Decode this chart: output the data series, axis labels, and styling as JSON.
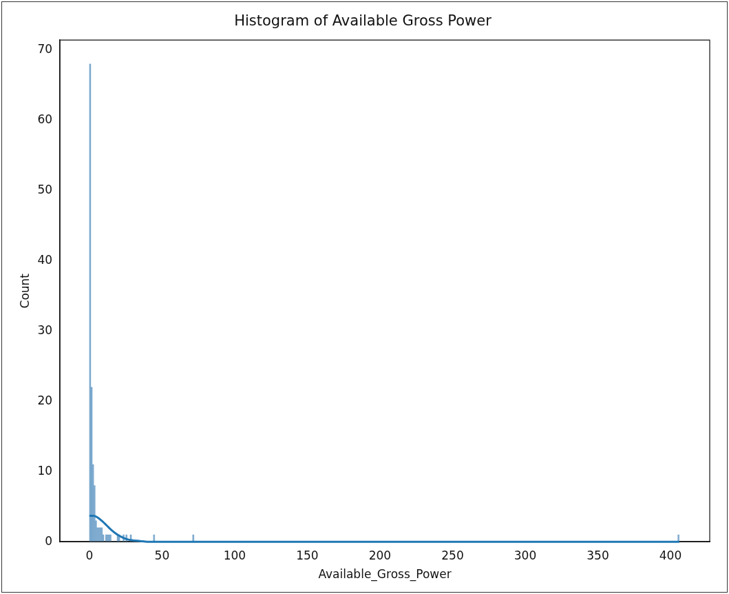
{
  "chart_data": {
    "type": "histogram",
    "title": "Histogram of Available Gross Power",
    "xlabel": "Available_Gross_Power",
    "ylabel": "Count",
    "bins": [
      0,
      1,
      2,
      3,
      4,
      5,
      6,
      7,
      8,
      9,
      10,
      11,
      12,
      13,
      14,
      15,
      16,
      17,
      18,
      19,
      20,
      21,
      22,
      23,
      24,
      25,
      26,
      27,
      28,
      29,
      30,
      31,
      32,
      33,
      34,
      35,
      36,
      37,
      38,
      39,
      40,
      41,
      42,
      43,
      44,
      45,
      46,
      47,
      48,
      49,
      50,
      51,
      52,
      53,
      54,
      55,
      56,
      57,
      58,
      59,
      60,
      61,
      62,
      63,
      64,
      65,
      66,
      67,
      68,
      69,
      70,
      71,
      72,
      73,
      74,
      75,
      76,
      77,
      78,
      79,
      80,
      81,
      82,
      83,
      84,
      85,
      86,
      87,
      88,
      89,
      90,
      91,
      92,
      93,
      94,
      95,
      96,
      97,
      98,
      99,
      100,
      101,
      102,
      103,
      104,
      105,
      106,
      107,
      108,
      109,
      110,
      111,
      112,
      113,
      114,
      115,
      116,
      117,
      118,
      119,
      120,
      121,
      122,
      123,
      124,
      125,
      126,
      127,
      128,
      129,
      130,
      131,
      132,
      133,
      134,
      135,
      136,
      137,
      138,
      139,
      140,
      141,
      142,
      143,
      144,
      145,
      146,
      147,
      148,
      149,
      150,
      151,
      152,
      153,
      154,
      155,
      156,
      157,
      158,
      159,
      160,
      161,
      162,
      163,
      164,
      165,
      166,
      167,
      168,
      169,
      170,
      171,
      172,
      173,
      174,
      175,
      176,
      177,
      178,
      179,
      180,
      181,
      182,
      183,
      184,
      185,
      186,
      187,
      188,
      189,
      190,
      191,
      192,
      193,
      194,
      195,
      196,
      197,
      198,
      199,
      200,
      201,
      202,
      203,
      204,
      205,
      206,
      207,
      208,
      209,
      210,
      211,
      212,
      213,
      214,
      215,
      216,
      217,
      218,
      219,
      220,
      221,
      222,
      223,
      224,
      225,
      226,
      227,
      228,
      229,
      230,
      231,
      232,
      233,
      234,
      235,
      236,
      237,
      238,
      239,
      240,
      241,
      242,
      243,
      244,
      245,
      246,
      247,
      248,
      249,
      250,
      251,
      252,
      253,
      254,
      255,
      256,
      257,
      258,
      259,
      260,
      261,
      262,
      263,
      264,
      265,
      266,
      267,
      268,
      269,
      270,
      271,
      272,
      273,
      274,
      275,
      276,
      277,
      278,
      279,
      280,
      281,
      282,
      283,
      284,
      285,
      286,
      287,
      288,
      289,
      290,
      291,
      292,
      293,
      294,
      295,
      296,
      297,
      298,
      299,
      300,
      301,
      302,
      303,
      304,
      305,
      306,
      307,
      308,
      309,
      310,
      311,
      312,
      313,
      314,
      315,
      316,
      317,
      318,
      319,
      320,
      321,
      322,
      323,
      324,
      325,
      326,
      327,
      328,
      329,
      330,
      331,
      332,
      333,
      334,
      335,
      336,
      337,
      338,
      339,
      340,
      341,
      342,
      343,
      344,
      345,
      346,
      347,
      348,
      349,
      350,
      351,
      352,
      353,
      354,
      355,
      356,
      357,
      358,
      359,
      360,
      361,
      362,
      363,
      364,
      365,
      366,
      367,
      368,
      369,
      370,
      371,
      372,
      373,
      374,
      375,
      376,
      377,
      378,
      379,
      380,
      381,
      382,
      383,
      384,
      385,
      386,
      387,
      388,
      389,
      390,
      391,
      392,
      393,
      394,
      395,
      396,
      397,
      398,
      399,
      400,
      401,
      402,
      403,
      404,
      405,
      406
    ],
    "values": [
      68,
      22,
      11,
      8,
      3,
      2,
      2,
      2,
      2,
      1,
      0,
      1,
      1,
      1,
      1,
      0,
      0,
      0,
      0,
      1,
      1,
      0,
      0,
      1,
      0,
      1,
      0,
      0,
      1,
      0,
      0,
      0,
      0,
      0,
      0,
      0,
      0,
      0,
      0,
      0,
      0,
      0,
      0,
      0,
      1,
      0,
      0,
      0,
      0,
      0,
      0,
      0,
      0,
      0,
      0,
      0,
      0,
      0,
      0,
      0,
      0,
      0,
      0,
      0,
      0,
      0,
      0,
      0,
      0,
      0,
      0,
      1,
      0,
      0,
      0,
      0,
      0,
      0,
      0,
      0,
      0,
      0,
      0,
      0,
      0,
      0,
      0,
      0,
      0,
      0,
      0,
      0,
      0,
      0,
      0,
      0,
      0,
      0,
      0,
      0,
      0,
      0,
      0,
      0,
      0,
      0,
      0,
      0,
      0,
      0,
      0,
      0,
      0,
      0,
      0,
      0,
      0,
      0,
      0,
      0,
      0,
      0,
      0,
      0,
      0,
      0,
      0,
      0,
      0,
      0,
      0,
      0,
      0,
      0,
      0,
      0,
      0,
      0,
      0,
      0,
      0,
      0,
      0,
      0,
      0,
      0,
      0,
      0,
      0,
      0,
      0,
      0,
      0,
      0,
      0,
      0,
      0,
      0,
      0,
      0,
      0,
      0,
      0,
      0,
      0,
      0,
      0,
      0,
      0,
      0,
      0,
      0,
      0,
      0,
      0,
      0,
      0,
      0,
      0,
      0,
      0,
      0,
      0,
      0,
      0,
      0,
      0,
      0,
      0,
      0,
      0,
      0,
      0,
      0,
      0,
      0,
      0,
      0,
      0,
      0,
      0,
      0,
      0,
      0,
      0,
      0,
      0,
      0,
      0,
      0,
      0,
      0,
      0,
      0,
      0,
      0,
      0,
      0,
      0,
      0,
      0,
      0,
      0,
      0,
      0,
      0,
      0,
      0,
      0,
      0,
      0,
      0,
      0,
      0,
      0,
      0,
      0,
      0,
      0,
      0,
      0,
      0,
      0,
      0,
      0,
      0,
      0,
      0,
      0,
      0,
      0,
      0,
      0,
      0,
      0,
      0,
      0,
      0,
      0,
      0,
      0,
      0,
      0,
      0,
      0,
      0,
      0,
      0,
      0,
      0,
      0,
      0,
      0,
      0,
      0,
      0,
      0,
      0,
      0,
      0,
      0,
      0,
      0,
      0,
      0,
      0,
      0,
      0,
      0,
      0,
      0,
      0,
      0,
      0,
      0,
      0,
      0,
      0,
      0,
      0,
      0,
      0,
      0,
      0,
      0,
      0,
      0,
      0,
      0,
      0,
      0,
      0,
      0,
      0,
      0,
      0,
      0,
      0,
      0,
      0,
      0,
      0,
      0,
      0,
      0,
      0,
      0,
      0,
      0,
      0,
      0,
      0,
      0,
      0,
      0,
      0,
      0,
      0,
      0,
      0,
      0,
      0,
      0,
      0,
      0,
      0,
      0,
      0,
      0,
      0,
      0,
      0,
      0,
      0,
      0,
      0,
      0,
      0,
      0,
      0,
      0,
      0,
      0,
      0,
      0,
      0,
      0,
      0,
      0,
      0,
      0,
      0,
      0,
      0,
      0,
      0,
      0,
      0,
      0,
      0,
      0,
      0,
      0,
      0,
      0,
      0,
      0,
      0,
      0,
      0,
      0,
      0,
      0,
      0,
      0,
      0,
      0,
      0,
      0,
      0,
      0,
      0,
      0,
      0,
      0,
      1
    ],
    "color": "#6b9ec8",
    "series": [
      {
        "type": "line",
        "color": "#1f77b4",
        "x": [
          0,
          3,
          6,
          9,
          12,
          15,
          18,
          21,
          24,
          27,
          30,
          35,
          40,
          45,
          50,
          60,
          80,
          100,
          150,
          200,
          300,
          406
        ],
        "values": [
          3.7,
          3.7,
          3.4,
          2.9,
          2.3,
          1.7,
          1.2,
          0.8,
          0.5,
          0.3,
          0.2,
          0.1,
          0,
          0,
          0,
          0,
          0,
          0,
          0,
          0,
          0,
          0
        ]
      }
    ],
    "xlim": [
      -20.3,
      427
    ],
    "ylim": [
      0,
      71.4
    ],
    "xticks": [
      0,
      50,
      100,
      150,
      200,
      250,
      300,
      350,
      400
    ],
    "yticks": [
      0,
      10,
      20,
      30,
      40,
      50,
      60,
      70
    ],
    "grid": false,
    "legend": false
  }
}
